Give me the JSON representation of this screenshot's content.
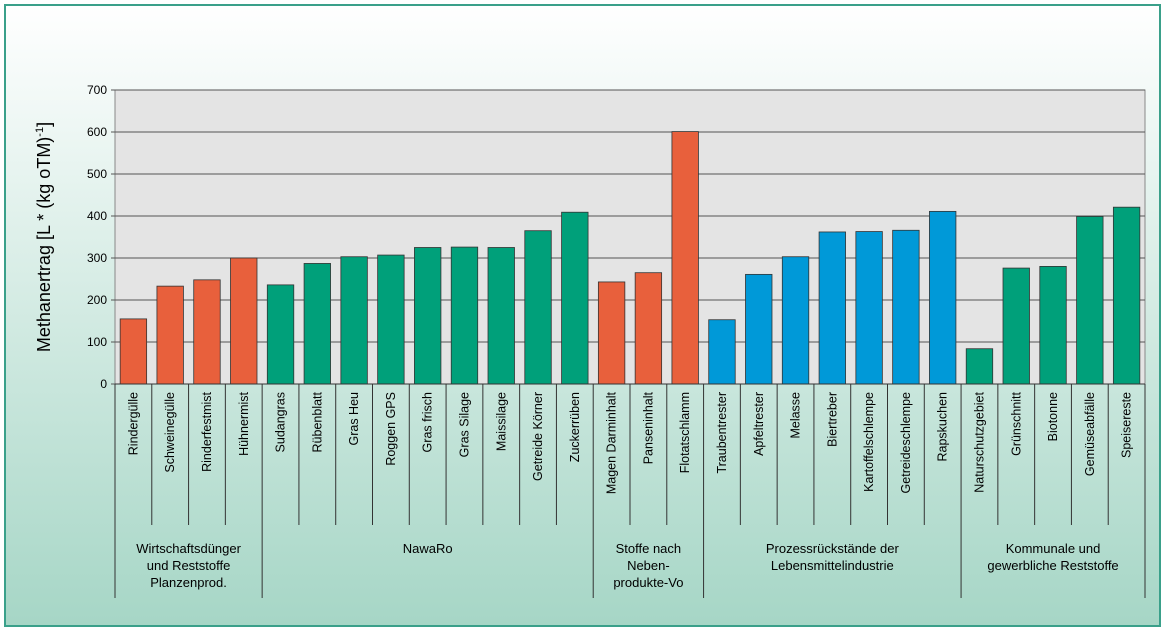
{
  "chart_data": {
    "type": "bar",
    "ylabel": {
      "text": "Methanertrag [L * (kg oTM)",
      "sup": "-1",
      "end": "]"
    },
    "ylim": [
      0,
      700
    ],
    "yticks": [
      0,
      100,
      200,
      300,
      400,
      500,
      600,
      700
    ],
    "grid": true,
    "groups": [
      {
        "label": [
          "Wirtschaftsdünger",
          "und  Reststoffe",
          "Planzenprod."
        ],
        "color": "#e8603c",
        "categories": [
          "Rindergülle",
          "Schweinegülle",
          "Rinderfestmist",
          "Hühnermist"
        ],
        "values": [
          155,
          233,
          248,
          300
        ]
      },
      {
        "label": [
          "NawaRo"
        ],
        "color": "#00a07a",
        "categories": [
          "Sudangras",
          "Rübenblatt",
          "Gras  Heu",
          "Roggen  GPS",
          "Gras  frisch",
          "Gras  Silage",
          "Maissilage",
          "Getreide  Körner",
          "Zuckerrüben"
        ],
        "values": [
          236,
          287,
          303,
          307,
          325,
          326,
          325,
          365,
          409
        ]
      },
      {
        "label": [
          "Stoffe nach",
          "Neben-",
          "produkte-Vo"
        ],
        "color": "#e8603c",
        "categories": [
          "Magen Darminhalt",
          "Panseninhalt",
          "Flotatschlamm"
        ],
        "values": [
          243,
          265,
          601
        ]
      },
      {
        "label": [
          "Prozessrückstände der",
          "Lebensmittelindustrie"
        ],
        "color": "#0099d8",
        "categories": [
          "Traubentrester",
          "Apfeltrester",
          "Melasse",
          "Biertreber",
          "Kartoffelschlempe",
          "Getreideschlempe",
          "Rapskuchen"
        ],
        "values": [
          153,
          261,
          303,
          362,
          363,
          366,
          411
        ]
      },
      {
        "label": [
          "Kommunale und",
          "gewerbliche Reststoffe"
        ],
        "color": "#00a07a",
        "categories": [
          "Naturschutzgebiet",
          "Grünschnitt",
          "Biotonne",
          "Gemüseabfälle",
          "Speisereste"
        ],
        "values": [
          84,
          276,
          280,
          399,
          421
        ]
      }
    ]
  }
}
